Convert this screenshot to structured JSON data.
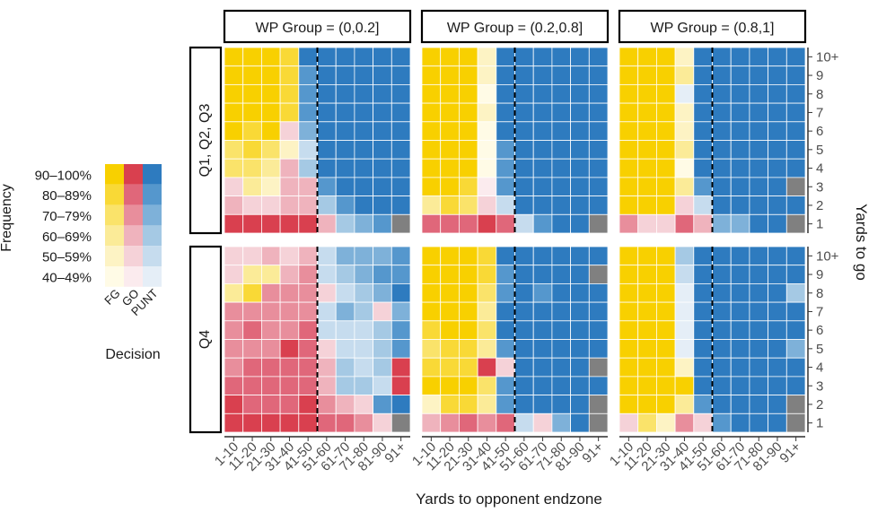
{
  "chart_data": {
    "type": "heatmap",
    "xlabel": "Yards to opponent endzone",
    "ylabel": "Yards to go",
    "x_categories": [
      "1-10",
      "11-20",
      "21-30",
      "31-40",
      "41-50",
      "51-60",
      "61-70",
      "71-80",
      "81-90",
      "91+"
    ],
    "y_categories": [
      "1",
      "2",
      "3",
      "4",
      "5",
      "6",
      "7",
      "8",
      "9",
      "10+"
    ],
    "column_facets": [
      "WP Group = (0,0.2]",
      "WP Group = (0.2,0.8]",
      "WP Group = (0.8,1]"
    ],
    "row_facets": [
      "Q1, Q2, Q3",
      "Q4"
    ],
    "divider_between": [
      "41-50",
      "51-60"
    ],
    "legend": {
      "title": "Frequency",
      "decision_title": "Decision",
      "decisions": [
        "FG",
        "GO",
        "PUNT"
      ],
      "bins": [
        "90–100%",
        "80–89%",
        "70–79%",
        "60–69%",
        "50–59%",
        "40–49%"
      ]
    },
    "colors": {
      "FG": [
        "#f8d000",
        "#f9d936",
        "#fae36a",
        "#fbeb98",
        "#fdf3c4",
        "#fffbe6"
      ],
      "GO": [
        "#d9404f",
        "#e0677a",
        "#e88e9c",
        "#efb3bd",
        "#f5d2d8",
        "#fbebee"
      ],
      "PUNT": [
        "#2e7bbf",
        "#5597cd",
        "#7eb1d9",
        "#a5c9e4",
        "#c6dcee",
        "#e5eef7"
      ],
      "NA": "#808080"
    },
    "cell_encoding": "value = 'DECISION:bin' where bin 0 = 90–100% ... 5 = 40–49%; NA = no data. rows ordered from 10+ down to 1, columns from 1-10 to 91+",
    "panels": [
      {
        "row": "Q1, Q2, Q3",
        "col": "WP Group = (0,0.2]",
        "cells": [
          [
            "FG:0",
            "FG:0",
            "FG:0",
            "FG:1",
            "PUNT:0",
            "PUNT:0",
            "PUNT:0",
            "PUNT:0",
            "PUNT:0",
            "PUNT:0"
          ],
          [
            "FG:0",
            "FG:0",
            "FG:0",
            "FG:1",
            "PUNT:1",
            "PUNT:0",
            "PUNT:0",
            "PUNT:0",
            "PUNT:0",
            "PUNT:0"
          ],
          [
            "FG:0",
            "FG:0",
            "FG:0",
            "FG:1",
            "PUNT:1",
            "PUNT:0",
            "PUNT:0",
            "PUNT:0",
            "PUNT:0",
            "PUNT:0"
          ],
          [
            "FG:0",
            "FG:0",
            "FG:0",
            "FG:1",
            "PUNT:1",
            "PUNT:0",
            "PUNT:0",
            "PUNT:0",
            "PUNT:0",
            "PUNT:0"
          ],
          [
            "FG:0",
            "FG:1",
            "FG:0",
            "GO:4",
            "PUNT:2",
            "PUNT:0",
            "PUNT:0",
            "PUNT:0",
            "PUNT:0",
            "PUNT:0"
          ],
          [
            "FG:2",
            "FG:1",
            "FG:2",
            "FG:4",
            "PUNT:4",
            "PUNT:0",
            "PUNT:0",
            "PUNT:0",
            "PUNT:0",
            "PUNT:0"
          ],
          [
            "FG:2",
            "FG:2",
            "FG:3",
            "GO:3",
            "PUNT:3",
            "PUNT:0",
            "PUNT:0",
            "PUNT:0",
            "PUNT:0",
            "PUNT:0"
          ],
          [
            "GO:4",
            "FG:3",
            "FG:4",
            "GO:3",
            "GO:3",
            "PUNT:1",
            "PUNT:0",
            "PUNT:0",
            "PUNT:0",
            "PUNT:0"
          ],
          [
            "GO:3",
            "GO:4",
            "GO:4",
            "GO:3",
            "GO:3",
            "PUNT:3",
            "PUNT:1",
            "PUNT:0",
            "PUNT:0",
            "PUNT:0"
          ],
          [
            "GO:0",
            "GO:0",
            "GO:0",
            "GO:0",
            "GO:0",
            "GO:3",
            "PUNT:3",
            "PUNT:2",
            "PUNT:1",
            "NA"
          ]
        ]
      },
      {
        "row": "Q1, Q2, Q3",
        "col": "WP Group = (0.2,0.8]",
        "cells": [
          [
            "FG:0",
            "FG:0",
            "FG:0",
            "FG:4",
            "PUNT:0",
            "PUNT:0",
            "PUNT:0",
            "PUNT:0",
            "PUNT:0",
            "PUNT:0"
          ],
          [
            "FG:0",
            "FG:0",
            "FG:0",
            "FG:4",
            "PUNT:0",
            "PUNT:0",
            "PUNT:0",
            "PUNT:0",
            "PUNT:0",
            "PUNT:0"
          ],
          [
            "FG:0",
            "FG:0",
            "FG:0",
            "FG:5",
            "PUNT:0",
            "PUNT:0",
            "PUNT:0",
            "PUNT:0",
            "PUNT:0",
            "PUNT:0"
          ],
          [
            "FG:0",
            "FG:0",
            "FG:0",
            "FG:4",
            "PUNT:0",
            "PUNT:0",
            "PUNT:0",
            "PUNT:0",
            "PUNT:0",
            "PUNT:0"
          ],
          [
            "FG:0",
            "FG:0",
            "FG:0",
            "FG:5",
            "PUNT:0",
            "PUNT:0",
            "PUNT:0",
            "PUNT:0",
            "PUNT:0",
            "PUNT:0"
          ],
          [
            "FG:0",
            "FG:0",
            "FG:0",
            "FG:5",
            "PUNT:1",
            "PUNT:0",
            "PUNT:0",
            "PUNT:0",
            "PUNT:0",
            "PUNT:0"
          ],
          [
            "FG:0",
            "FG:0",
            "FG:0",
            "FG:5",
            "PUNT:1",
            "PUNT:0",
            "PUNT:0",
            "PUNT:0",
            "PUNT:0",
            "PUNT:0"
          ],
          [
            "FG:0",
            "FG:0",
            "FG:1",
            "GO:5",
            "PUNT:1",
            "PUNT:0",
            "PUNT:0",
            "PUNT:0",
            "PUNT:0",
            "PUNT:0"
          ],
          [
            "FG:3",
            "FG:1",
            "FG:2",
            "GO:4",
            "PUNT:4",
            "PUNT:0",
            "PUNT:0",
            "PUNT:0",
            "PUNT:0",
            "PUNT:0"
          ],
          [
            "GO:1",
            "GO:1",
            "GO:1",
            "GO:0",
            "GO:1",
            "PUNT:4",
            "PUNT:1",
            "PUNT:0",
            "PUNT:0",
            "NA"
          ]
        ]
      },
      {
        "row": "Q1, Q2, Q3",
        "col": "WP Group = (0.8,1]",
        "cells": [
          [
            "FG:0",
            "FG:0",
            "FG:0",
            "FG:4",
            "PUNT:0",
            "PUNT:0",
            "PUNT:0",
            "PUNT:0",
            "PUNT:0",
            "PUNT:0"
          ],
          [
            "FG:0",
            "FG:0",
            "FG:0",
            "FG:3",
            "PUNT:0",
            "PUNT:0",
            "PUNT:0",
            "PUNT:0",
            "PUNT:0",
            "PUNT:0"
          ],
          [
            "FG:0",
            "FG:0",
            "FG:0",
            "PUNT:5",
            "PUNT:0",
            "PUNT:0",
            "PUNT:0",
            "PUNT:0",
            "PUNT:0",
            "PUNT:0"
          ],
          [
            "FG:0",
            "FG:0",
            "FG:0",
            "FG:4",
            "PUNT:0",
            "PUNT:0",
            "PUNT:0",
            "PUNT:0",
            "PUNT:0",
            "PUNT:0"
          ],
          [
            "FG:0",
            "FG:0",
            "FG:0",
            "FG:4",
            "PUNT:0",
            "PUNT:0",
            "PUNT:0",
            "PUNT:0",
            "PUNT:0",
            "PUNT:0"
          ],
          [
            "FG:0",
            "FG:0",
            "FG:0",
            "FG:3",
            "PUNT:0",
            "PUNT:0",
            "PUNT:0",
            "PUNT:0",
            "PUNT:0",
            "PUNT:0"
          ],
          [
            "FG:0",
            "FG:0",
            "FG:0",
            "FG:5",
            "PUNT:0",
            "PUNT:0",
            "PUNT:0",
            "PUNT:0",
            "PUNT:0",
            "PUNT:0"
          ],
          [
            "FG:0",
            "FG:0",
            "FG:0",
            "FG:3",
            "PUNT:1",
            "PUNT:0",
            "PUNT:0",
            "PUNT:0",
            "PUNT:0",
            "NA"
          ],
          [
            "FG:0",
            "FG:0",
            "FG:0",
            "GO:4",
            "PUNT:4",
            "PUNT:0",
            "PUNT:0",
            "PUNT:0",
            "PUNT:0",
            "PUNT:0"
          ],
          [
            "GO:2",
            "GO:4",
            "GO:4",
            "GO:1",
            "GO:3",
            "PUNT:2",
            "PUNT:2",
            "PUNT:0",
            "PUNT:0",
            "NA"
          ]
        ]
      },
      {
        "row": "Q4",
        "col": "WP Group = (0,0.2]",
        "cells": [
          [
            "GO:4",
            "GO:4",
            "GO:3",
            "GO:4",
            "GO:3",
            "PUNT:4",
            "PUNT:2",
            "PUNT:2",
            "PUNT:2",
            "PUNT:1"
          ],
          [
            "GO:4",
            "FG:3",
            "FG:3",
            "GO:3",
            "GO:2",
            "PUNT:4",
            "PUNT:3",
            "PUNT:2",
            "PUNT:1",
            "PUNT:1"
          ],
          [
            "FG:3",
            "FG:1",
            "GO:2",
            "GO:2",
            "GO:2",
            "GO:4",
            "PUNT:4",
            "PUNT:3",
            "PUNT:2",
            "PUNT:0"
          ],
          [
            "GO:2",
            "GO:2",
            "GO:2",
            "GO:2",
            "GO:2",
            "PUNT:4",
            "PUNT:2",
            "PUNT:3",
            "GO:4",
            "PUNT:2"
          ],
          [
            "GO:2",
            "GO:1",
            "GO:2",
            "GO:2",
            "GO:1",
            "PUNT:4",
            "PUNT:4",
            "PUNT:4",
            "PUNT:3",
            "PUNT:1"
          ],
          [
            "GO:2",
            "GO:2",
            "GO:2",
            "GO:0",
            "GO:1",
            "GO:4",
            "PUNT:4",
            "PUNT:4",
            "PUNT:3",
            "PUNT:1"
          ],
          [
            "GO:2",
            "GO:1",
            "GO:1",
            "GO:1",
            "GO:1",
            "GO:3",
            "PUNT:3",
            "PUNT:4",
            "PUNT:3",
            "GO:0"
          ],
          [
            "GO:1",
            "GO:1",
            "GO:1",
            "GO:1",
            "GO:1",
            "GO:3",
            "PUNT:3",
            "PUNT:3",
            "PUNT:4",
            "GO:0"
          ],
          [
            "GO:0",
            "GO:1",
            "GO:1",
            "GO:1",
            "GO:0",
            "GO:2",
            "GO:3",
            "GO:4",
            "PUNT:1",
            "PUNT:0"
          ],
          [
            "GO:0",
            "GO:0",
            "GO:0",
            "GO:0",
            "GO:0",
            "GO:1",
            "GO:1",
            "GO:2",
            "GO:4",
            "NA"
          ]
        ]
      },
      {
        "row": "Q4",
        "col": "WP Group = (0.2,0.8]",
        "cells": [
          [
            "FG:0",
            "FG:0",
            "FG:0",
            "FG:1",
            "PUNT:0",
            "PUNT:0",
            "PUNT:0",
            "PUNT:0",
            "PUNT:0",
            "PUNT:0"
          ],
          [
            "FG:0",
            "FG:0",
            "FG:0",
            "FG:1",
            "PUNT:1",
            "PUNT:0",
            "PUNT:0",
            "PUNT:0",
            "PUNT:0",
            "NA"
          ],
          [
            "FG:0",
            "FG:0",
            "FG:0",
            "FG:2",
            "PUNT:1",
            "PUNT:0",
            "PUNT:1",
            "PUNT:0",
            "PUNT:0",
            "PUNT:0"
          ],
          [
            "FG:0",
            "FG:0",
            "FG:0",
            "FG:3",
            "PUNT:0",
            "PUNT:0",
            "PUNT:0",
            "PUNT:0",
            "PUNT:0",
            "PUNT:0"
          ],
          [
            "FG:1",
            "FG:0",
            "FG:0",
            "FG:2",
            "PUNT:0",
            "PUNT:0",
            "PUNT:0",
            "PUNT:0",
            "PUNT:0",
            "PUNT:0"
          ],
          [
            "FG:2",
            "FG:1",
            "FG:1",
            "FG:3",
            "PUNT:1",
            "PUNT:0",
            "PUNT:0",
            "PUNT:0",
            "PUNT:0",
            "PUNT:0"
          ],
          [
            "FG:1",
            "FG:1",
            "FG:1",
            "GO:0",
            "GO:4",
            "PUNT:0",
            "PUNT:0",
            "PUNT:0",
            "PUNT:0",
            "NA"
          ],
          [
            "FG:0",
            "FG:0",
            "FG:0",
            "FG:2",
            "PUNT:1",
            "PUNT:0",
            "PUNT:0",
            "PUNT:0",
            "PUNT:0",
            "PUNT:0"
          ],
          [
            "FG:4",
            "FG:1",
            "FG:1",
            "FG:3",
            "PUNT:1",
            "PUNT:0",
            "PUNT:0",
            "PUNT:0",
            "PUNT:0",
            "NA"
          ],
          [
            "GO:3",
            "GO:2",
            "GO:1",
            "GO:2",
            "GO:1",
            "PUNT:4",
            "GO:4",
            "PUNT:2",
            "PUNT:0",
            "NA"
          ]
        ]
      },
      {
        "row": "Q4",
        "col": "WP Group = (0.8,1]",
        "cells": [
          [
            "FG:0",
            "FG:0",
            "FG:0",
            "PUNT:3",
            "PUNT:0",
            "PUNT:0",
            "PUNT:0",
            "PUNT:0",
            "PUNT:0",
            "PUNT:0"
          ],
          [
            "FG:0",
            "FG:0",
            "FG:0",
            "PUNT:4",
            "PUNT:0",
            "PUNT:0",
            "PUNT:0",
            "PUNT:0",
            "PUNT:0",
            "PUNT:0"
          ],
          [
            "FG:0",
            "FG:0",
            "FG:0",
            "PUNT:5",
            "PUNT:0",
            "PUNT:0",
            "PUNT:0",
            "PUNT:0",
            "PUNT:0",
            "PUNT:3"
          ],
          [
            "FG:0",
            "FG:0",
            "FG:0",
            "PUNT:5",
            "PUNT:0",
            "PUNT:0",
            "PUNT:0",
            "PUNT:0",
            "PUNT:0",
            "PUNT:0"
          ],
          [
            "FG:0",
            "FG:0",
            "FG:0",
            "PUNT:5",
            "PUNT:0",
            "PUNT:0",
            "PUNT:0",
            "PUNT:0",
            "PUNT:0",
            "PUNT:0"
          ],
          [
            "FG:0",
            "FG:0",
            "FG:0",
            "PUNT:5",
            "PUNT:0",
            "PUNT:0",
            "PUNT:0",
            "PUNT:0",
            "PUNT:0",
            "PUNT:2"
          ],
          [
            "FG:0",
            "FG:0",
            "FG:0",
            "FG:4",
            "PUNT:0",
            "PUNT:0",
            "PUNT:0",
            "PUNT:0",
            "PUNT:0",
            "PUNT:0"
          ],
          [
            "FG:0",
            "FG:0",
            "FG:0",
            "FG:0",
            "PUNT:0",
            "PUNT:0",
            "PUNT:0",
            "PUNT:0",
            "PUNT:0",
            "PUNT:0"
          ],
          [
            "FG:0",
            "FG:0",
            "FG:0",
            "FG:3",
            "PUNT:1",
            "PUNT:0",
            "PUNT:0",
            "PUNT:0",
            "PUNT:0",
            "NA"
          ],
          [
            "GO:4",
            "FG:2",
            "FG:4",
            "GO:2",
            "GO:4",
            "PUNT:1",
            "PUNT:0",
            "PUNT:0",
            "PUNT:0",
            "NA"
          ]
        ]
      }
    ]
  }
}
